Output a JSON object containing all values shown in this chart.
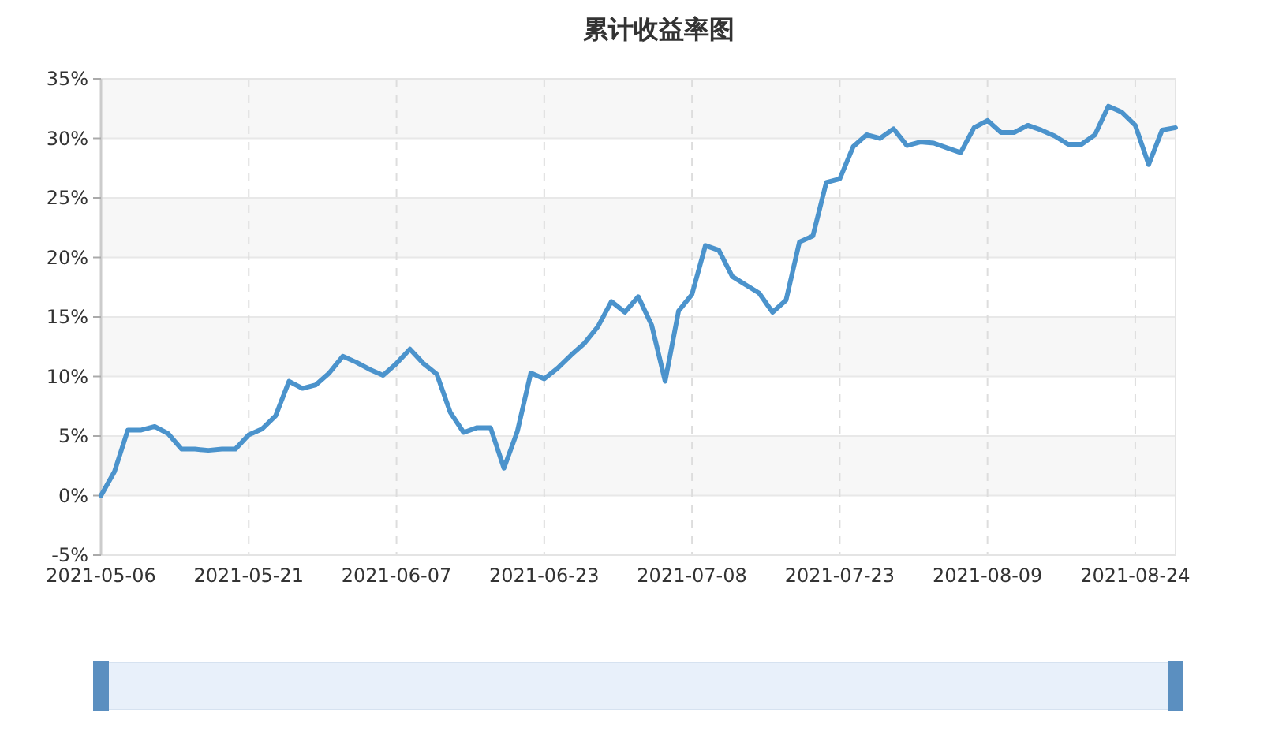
{
  "chart_data": {
    "type": "line",
    "title": "累计收益率图",
    "categories": [
      "2021-05-06",
      null,
      null,
      null,
      null,
      null,
      null,
      null,
      null,
      null,
      null,
      "2021-05-21",
      null,
      null,
      null,
      null,
      null,
      null,
      null,
      null,
      null,
      null,
      "2021-06-07",
      null,
      null,
      null,
      null,
      null,
      null,
      null,
      null,
      null,
      null,
      "2021-06-23",
      null,
      null,
      null,
      null,
      null,
      null,
      null,
      null,
      null,
      null,
      "2021-07-08",
      null,
      null,
      null,
      null,
      null,
      null,
      null,
      null,
      null,
      null,
      "2021-07-23",
      null,
      null,
      null,
      null,
      null,
      null,
      null,
      null,
      null,
      null,
      "2021-08-09",
      null,
      null,
      null,
      null,
      null,
      null,
      null,
      null,
      null,
      null,
      "2021-08-24",
      null,
      null,
      null
    ],
    "series": [
      {
        "color": "#4b93cc",
        "values": [
          0,
          2.0,
          5.5,
          5.5,
          5.8,
          5.2,
          3.9,
          3.9,
          3.8,
          3.9,
          3.9,
          5.1,
          5.6,
          6.7,
          9.6,
          9.0,
          9.3,
          10.3,
          11.7,
          11.2,
          10.6,
          10.1,
          11.1,
          12.3,
          11.1,
          10.2,
          7.0,
          5.3,
          5.7,
          5.7,
          2.3,
          5.4,
          10.3,
          9.8,
          10.7,
          11.8,
          12.8,
          14.2,
          16.3,
          15.4,
          16.7,
          14.3,
          9.6,
          15.5,
          16.9,
          21.0,
          20.6,
          18.4,
          17.7,
          17.0,
          15.4,
          16.4,
          21.3,
          21.8,
          26.3,
          26.6,
          29.3,
          30.3,
          30.0,
          30.8,
          29.4,
          29.7,
          29.6,
          29.2,
          28.8,
          30.9,
          31.5,
          30.5,
          30.5,
          31.1,
          30.7,
          30.2,
          29.5,
          29.5,
          30.3,
          32.7,
          32.2,
          31.1,
          27.8,
          30.7,
          30.9
        ]
      }
    ],
    "ylim": [
      -5,
      35
    ],
    "yticks": [
      {
        "value": -5,
        "label": "-5%"
      },
      {
        "value": 0,
        "label": "0%"
      },
      {
        "value": 5,
        "label": "5%"
      },
      {
        "value": 10,
        "label": "10%"
      },
      {
        "value": 15,
        "label": "15%"
      },
      {
        "value": 20,
        "label": "20%"
      },
      {
        "value": 25,
        "label": "25%"
      },
      {
        "value": 30,
        "label": "30%"
      },
      {
        "value": 35,
        "label": "35%"
      }
    ],
    "grid": true,
    "marker": "none",
    "line_style": "solid"
  }
}
